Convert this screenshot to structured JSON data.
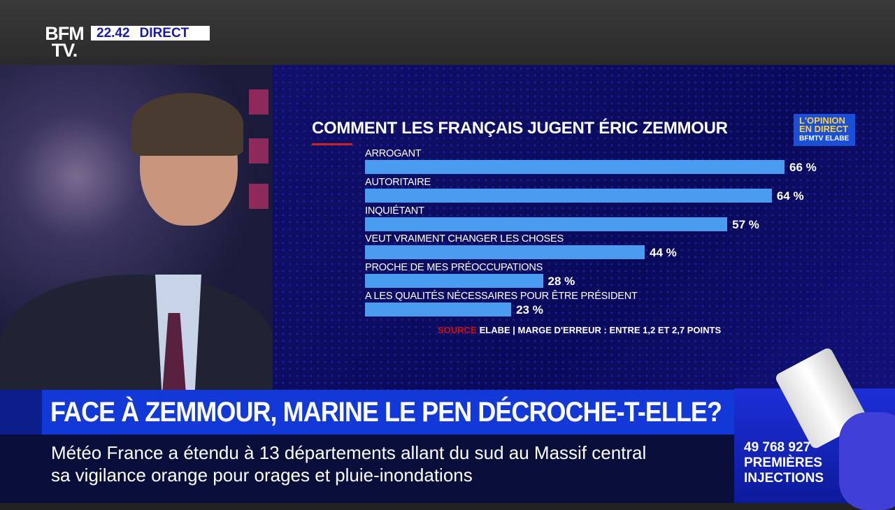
{
  "header": {
    "logo_line1": "BFM",
    "logo_line2": "TV.",
    "time": "22.42",
    "live_label": "DIRECT"
  },
  "badge": {
    "line1": "L'OPINION",
    "line2": "EN DIRECT",
    "line3": "BFMTV ELABE"
  },
  "chart_data": {
    "type": "bar",
    "orientation": "horizontal",
    "title": "COMMENT LES FRANÇAIS JUGENT ÉRIC ZEMMOUR",
    "categories": [
      "ARROGANT",
      "AUTORITAIRE",
      "INQUIÉTANT",
      "VEUT VRAIMENT CHANGER LES CHOSES",
      "PROCHE DE MES PRÉOCCUPATIONS",
      "A LES QUALITÉS NÉCESSAIRES POUR ÊTRE PRÉSIDENT"
    ],
    "values": [
      66,
      64,
      57,
      44,
      28,
      23
    ],
    "value_labels": [
      "66 %",
      "64 %",
      "57 %",
      "44 %",
      "28 %",
      "23 %"
    ],
    "unit": "%",
    "xlim": [
      0,
      66
    ],
    "grid": false,
    "bar_color": "#4a9cf0",
    "source_label": "SOURCE",
    "source_text": "ELABE | MARGE D'ERREUR : ENTRE 1,2 ET 2,7 POINTS"
  },
  "headline": "FACE À ZEMMOUR, MARINE LE PEN DÉCROCHE-T-ELLE?",
  "ticker": {
    "line1": "Météo France a étendu à 13 départements allant du sud au Massif central",
    "line2": "sa vigilance orange pour orages et pluie-inondations"
  },
  "vaccine": {
    "count": "49 768 927",
    "label1": "PREMIÈRES",
    "label2": "INJECTIONS"
  }
}
